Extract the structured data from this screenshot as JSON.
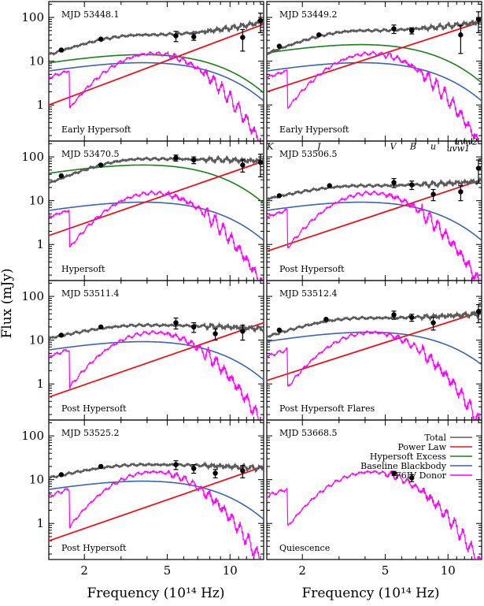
{
  "figure": {
    "ylabel": "Flux (mJy)",
    "xlabel": "Frequency (10¹⁴ Hz)"
  },
  "chart_data": {
    "type": "line",
    "x_scale": "log",
    "y_scale": "log",
    "xlim": [
      1.35,
      14.5
    ],
    "ylim": [
      0.15,
      230
    ],
    "x_ticks": [
      2,
      5,
      10
    ],
    "y_ticks": [
      1,
      10,
      100
    ],
    "colors": {
      "Total": "#5a5a5a",
      "Power Law": "#e8141e",
      "Hypersoft Excess": "#1e7d1e",
      "Baseline Blackbody": "#3c64aa",
      "F6IV Donor": "#ff00ff"
    },
    "legend": {
      "panel": 7,
      "placement": "top-right",
      "entries": [
        "Total",
        "Power Law",
        "Hypersoft Excess",
        "Baseline Blackbody",
        "F6IV Donor"
      ]
    },
    "band_labels": {
      "panel": 3,
      "items": [
        {
          "text": "K",
          "x": 1.4,
          "y": 150
        },
        {
          "text": "J",
          "x": 2.4,
          "y": 150
        },
        {
          "text": "V",
          "x": 5.45,
          "y": 150
        },
        {
          "text": "B",
          "x": 6.8,
          "y": 150
        },
        {
          "text": "u",
          "x": 8.5,
          "y": 150
        },
        {
          "text": "uvw1",
          "x": 11.2,
          "y": 135
        },
        {
          "text": "uvw2",
          "x": 12.2,
          "y": 190
        }
      ]
    },
    "panels": [
      {
        "title": "MJD 53448.1",
        "state": "Early Hypersoft",
        "total": {
          "lo": 14,
          "mid": 40,
          "hi": 80
        },
        "power_law": [
          1.0,
          70
        ],
        "hypersoft": [
          4.5,
          3.8,
          13
        ],
        "blackbody": [
          8.5,
          2.4
        ],
        "donor_scale": 1.0,
        "points": [
          {
            "x": 1.55,
            "y": 18
          },
          {
            "x": 2.4,
            "y": 32
          },
          {
            "x": 5.5,
            "y": 38,
            "e": 10
          },
          {
            "x": 6.7,
            "y": 36,
            "e": 6
          },
          {
            "x": 11.5,
            "y": 35,
            "e": 18
          },
          {
            "x": 14,
            "y": 85,
            "e": 40
          }
        ]
      },
      {
        "title": "MJD 53449.2",
        "state": "Early Hypersoft",
        "total": {
          "lo": 15,
          "mid": 50,
          "hi": 80
        },
        "power_law": [
          2.0,
          80
        ],
        "hypersoft": [
          6.0,
          3.8,
          22
        ],
        "blackbody": [
          8.5,
          2.4
        ],
        "donor_scale": 1.0,
        "points": [
          {
            "x": 1.55,
            "y": 22
          },
          {
            "x": 2.4,
            "y": 40
          },
          {
            "x": 5.5,
            "y": 55,
            "e": 12
          },
          {
            "x": 6.7,
            "y": 50,
            "e": 8
          },
          {
            "x": 11.5,
            "y": 40,
            "e": 25
          },
          {
            "x": 14,
            "y": 90,
            "e": 45
          }
        ]
      },
      {
        "title": "MJD 53470.5",
        "state": "Hypersoft",
        "total": {
          "lo": 25,
          "mid": 90,
          "hi": 80
        },
        "power_law": [
          1.6,
          80
        ],
        "hypersoft": [
          18,
          3.8,
          60
        ],
        "blackbody": [
          8.5,
          2.4
        ],
        "donor_scale": 1.0,
        "points": [
          {
            "x": 1.55,
            "y": 37
          },
          {
            "x": 2.4,
            "y": 65
          },
          {
            "x": 5.5,
            "y": 95,
            "e": 15
          },
          {
            "x": 6.7,
            "y": 85,
            "e": 15
          },
          {
            "x": 11.5,
            "y": 65,
            "e": 20
          },
          {
            "x": 14,
            "y": 75,
            "e": 40
          }
        ]
      },
      {
        "title": "MJD 53506.5",
        "state": "Post Hypersoft",
        "total": {
          "lo": 11,
          "mid": 22,
          "hi": 28
        },
        "power_law": [
          0.7,
          30
        ],
        "hypersoft": null,
        "blackbody": [
          8.5,
          2.4
        ],
        "donor_scale": 1.0,
        "points": [
          {
            "x": 1.55,
            "y": 13
          },
          {
            "x": 2.7,
            "y": 22
          },
          {
            "x": 5.5,
            "y": 26,
            "e": 6
          },
          {
            "x": 6.7,
            "y": 23,
            "e": 5
          },
          {
            "x": 8.5,
            "y": 14,
            "e": 4
          },
          {
            "x": 11.5,
            "y": 16,
            "e": 6
          },
          {
            "x": 14,
            "y": 55,
            "e": 30
          }
        ]
      },
      {
        "title": "MJD 53511.4",
        "state": "Post Hypersoft",
        "total": {
          "lo": 11,
          "mid": 22,
          "hi": 18
        },
        "power_law": [
          0.5,
          25
        ],
        "hypersoft": null,
        "blackbody": [
          8.5,
          2.4
        ],
        "donor_scale": 1.0,
        "points": [
          {
            "x": 1.55,
            "y": 13
          },
          {
            "x": 2.4,
            "y": 20
          },
          {
            "x": 5.5,
            "y": 25,
            "e": 7
          },
          {
            "x": 6.7,
            "y": 20,
            "e": 5
          },
          {
            "x": 8.5,
            "y": 14,
            "e": 4
          },
          {
            "x": 11.5,
            "y": 16,
            "e": 6
          }
        ]
      },
      {
        "title": "MJD 53512.4",
        "state": "Post Hypersoft Flares",
        "total": {
          "lo": 12,
          "mid": 32,
          "hi": 40
        },
        "power_law": [
          1.2,
          45
        ],
        "hypersoft": null,
        "blackbody": [
          14,
          2.6
        ],
        "donor_scale": 1.0,
        "points": [
          {
            "x": 1.55,
            "y": 17
          },
          {
            "x": 2.6,
            "y": 30
          },
          {
            "x": 5.5,
            "y": 38,
            "e": 8
          },
          {
            "x": 6.7,
            "y": 33,
            "e": 6
          },
          {
            "x": 8.5,
            "y": 25,
            "e": 8
          },
          {
            "x": 14,
            "y": 45,
            "e": 20
          }
        ]
      },
      {
        "title": "MJD 53525.2",
        "state": "Post Hypersoft",
        "total": {
          "lo": 11,
          "mid": 22,
          "hi": 18
        },
        "power_law": [
          0.4,
          20
        ],
        "hypersoft": null,
        "blackbody": [
          8.5,
          2.4
        ],
        "donor_scale": 1.0,
        "points": [
          {
            "x": 1.55,
            "y": 13
          },
          {
            "x": 2.4,
            "y": 20
          },
          {
            "x": 5.5,
            "y": 22,
            "e": 5
          },
          {
            "x": 6.7,
            "y": 18,
            "e": 4
          },
          {
            "x": 8.5,
            "y": 14,
            "e": 3
          },
          {
            "x": 11.5,
            "y": 16,
            "e": 5
          }
        ]
      },
      {
        "title": "MJD 53668.5",
        "state": "Quiescence",
        "total": null,
        "power_law": null,
        "hypersoft": null,
        "blackbody": null,
        "donor_scale": 1.0,
        "points": [
          {
            "x": 5.5,
            "y": 14,
            "e": 1.5
          },
          {
            "x": 6.7,
            "y": 11,
            "e": 2
          }
        ]
      }
    ]
  }
}
